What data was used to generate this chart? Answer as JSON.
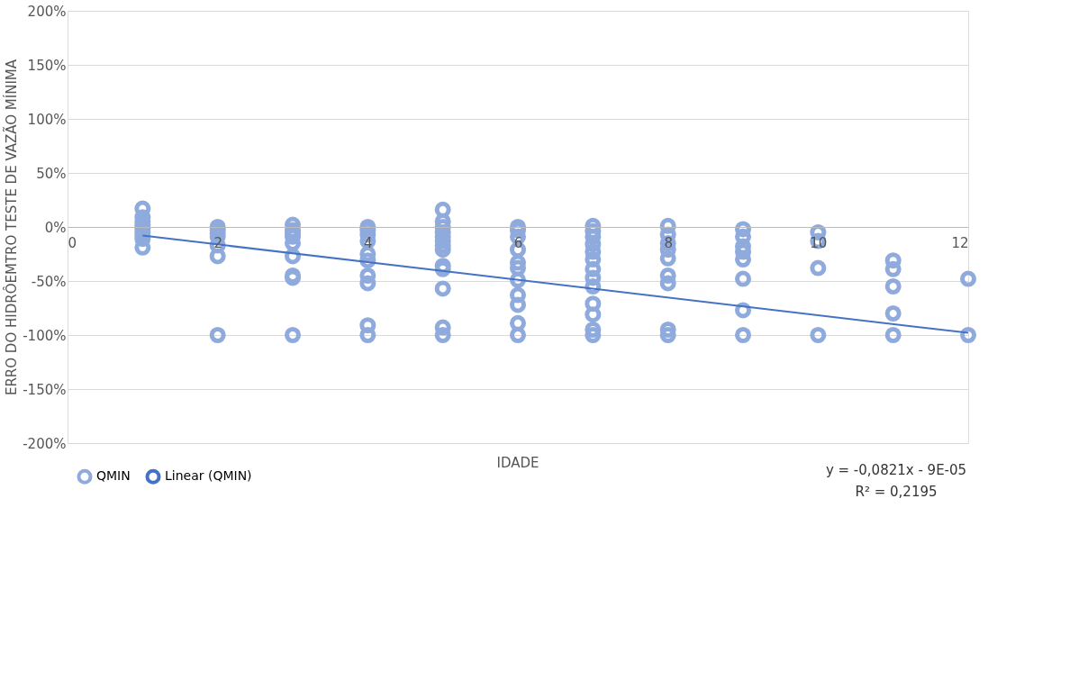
{
  "chart_data": {
    "type": "scatter",
    "xlabel": "IDADE",
    "ylabel": "ERRO DO HIDRÔEMTRO TESTE DE VAZÃO MÍNIMA",
    "xlim": [
      0,
      12
    ],
    "xticks": [
      0,
      2,
      4,
      6,
      8,
      10,
      12
    ],
    "ylim": [
      -200,
      200
    ],
    "yticks": [
      {
        "value": -200,
        "label": "-200%"
      },
      {
        "value": -150,
        "label": "-150%"
      },
      {
        "value": -100,
        "label": "-100%"
      },
      {
        "value": -50,
        "label": "-50%"
      },
      {
        "value": 0,
        "label": "0%"
      },
      {
        "value": 50,
        "label": "50%"
      },
      {
        "value": 100,
        "label": "100%"
      },
      {
        "value": 150,
        "label": "150%"
      },
      {
        "value": 200,
        "label": "200%"
      }
    ],
    "grid": "y",
    "legend": "bottom",
    "marker": "circle",
    "annotations": [
      "y = -0,0821x - 9E-05",
      "R² = 0,2195"
    ],
    "series": [
      {
        "name": "QMIN",
        "color": "#8faadc",
        "x": [
          1,
          1,
          1,
          1,
          1,
          1,
          1,
          1,
          1,
          2,
          2,
          2,
          2,
          2,
          2,
          2,
          3,
          3,
          3,
          3,
          3,
          3,
          3,
          3,
          3,
          4,
          4,
          4,
          4,
          4,
          4,
          4,
          4,
          4,
          4,
          5,
          5,
          5,
          5,
          5,
          5,
          5,
          5,
          5,
          5,
          5,
          5,
          5,
          6,
          6,
          6,
          6,
          6,
          6,
          6,
          6,
          6,
          6,
          6,
          7,
          7,
          7,
          7,
          7,
          7,
          7,
          7,
          7,
          7,
          7,
          7,
          7,
          8,
          8,
          8,
          8,
          8,
          8,
          8,
          8,
          8,
          9,
          9,
          9,
          9,
          9,
          9,
          9,
          9,
          10,
          10,
          10,
          10,
          11,
          11,
          11,
          11,
          11,
          12,
          12
        ],
        "values": [
          17,
          9,
          5,
          2,
          -1,
          -5,
          -8,
          -11,
          -19,
          0,
          -3,
          -6,
          -9,
          -17,
          -27,
          -100,
          2,
          -3,
          -6,
          -9,
          -15,
          -27,
          -45,
          -47,
          -100,
          0,
          -3,
          -7,
          -13,
          -25,
          -31,
          -45,
          -52,
          -91,
          -100,
          16,
          5,
          0,
          -5,
          -9,
          -13,
          -17,
          -21,
          -36,
          -39,
          -57,
          -93,
          -100,
          0,
          -3,
          -9,
          -21,
          -33,
          -38,
          -49,
          -63,
          -72,
          -89,
          -100,
          1,
          -4,
          -9,
          -16,
          -23,
          -30,
          -39,
          -47,
          -55,
          -71,
          -81,
          -95,
          -100,
          1,
          -7,
          -15,
          -21,
          -29,
          -45,
          -52,
          -95,
          -100,
          -2,
          -9,
          -18,
          -23,
          -30,
          -48,
          -77,
          -100,
          -5,
          -13,
          -38,
          -100,
          -31,
          -39,
          -55,
          -80,
          -100,
          -48,
          -100
        ]
      },
      {
        "name": "Linear (QMIN)",
        "type": "line",
        "marker": "none",
        "color": "#4472c4",
        "line_style": "solid",
        "x": [
          1,
          12
        ],
        "values": [
          -8,
          -98
        ]
      }
    ]
  }
}
